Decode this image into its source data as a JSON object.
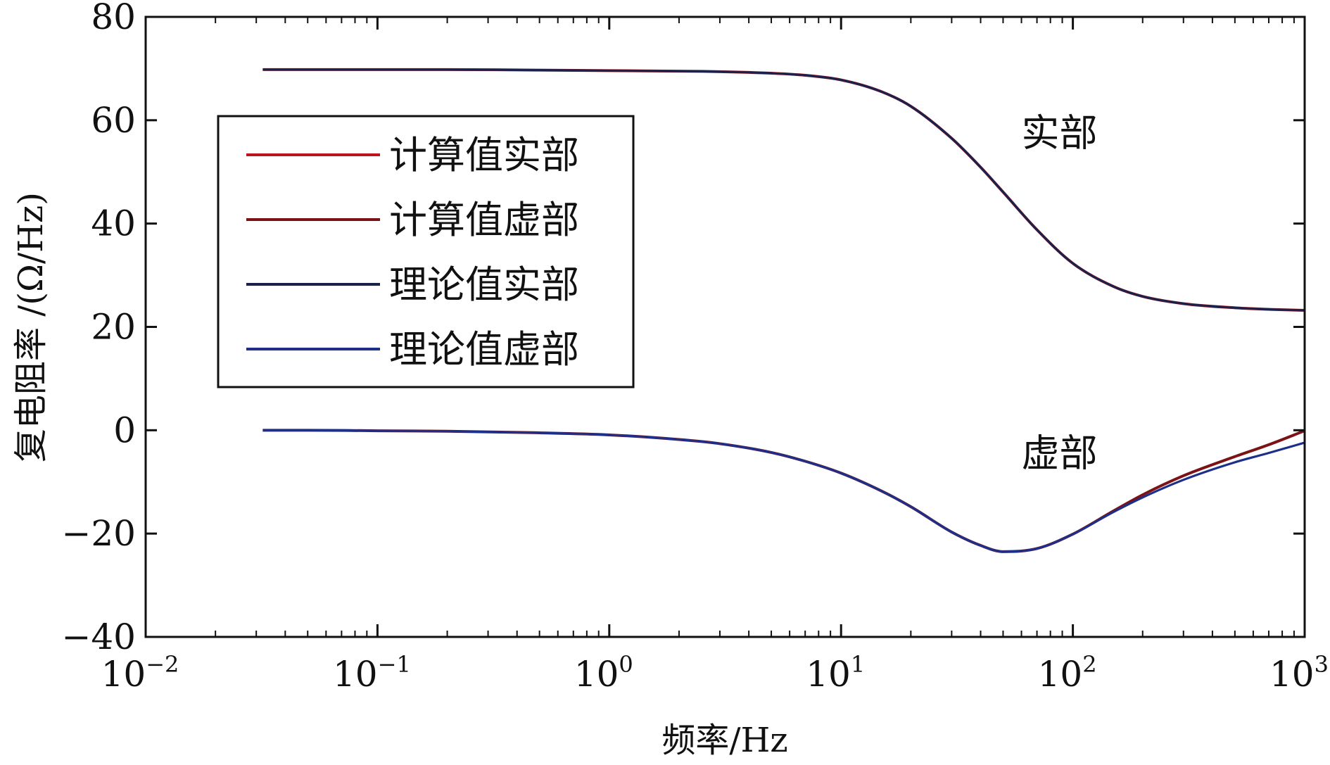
{
  "chart_data": {
    "type": "line",
    "title": "",
    "xlabel": "频率/Hz",
    "ylabel": "复电阻率 /(Ω/Hz)",
    "xscale": "log",
    "xlim": [
      0.01,
      1000
    ],
    "ylim": [
      -40,
      80
    ],
    "grid": false,
    "legend_position": "upper-left",
    "x_ticks": [
      {
        "base": "10",
        "exp": "−2"
      },
      {
        "base": "10",
        "exp": "−1"
      },
      {
        "base": "10",
        "exp": "0"
      },
      {
        "base": "10",
        "exp": "1"
      },
      {
        "base": "10",
        "exp": "2"
      },
      {
        "base": "10",
        "exp": "3"
      }
    ],
    "y_ticks": [
      "−40",
      "−20",
      "0",
      "20",
      "40",
      "60",
      "80"
    ],
    "y_tick_values": [
      -40,
      -20,
      0,
      20,
      40,
      60,
      80
    ],
    "x": [
      0.032,
      0.05,
      0.1,
      0.2,
      0.5,
      1,
      2,
      3,
      5,
      7,
      10,
      15,
      20,
      30,
      40,
      50,
      70,
      100,
      150,
      200,
      300,
      500,
      700,
      1000
    ],
    "series": [
      {
        "name": "计算值实部",
        "color": "#c0141c",
        "values": [
          69.8,
          69.8,
          69.8,
          69.8,
          69.7,
          69.6,
          69.5,
          69.4,
          69.1,
          68.7,
          67.8,
          65.5,
          62.7,
          56.5,
          50.9,
          46.1,
          38.8,
          32.3,
          27.8,
          25.9,
          24.5,
          23.7,
          23.4,
          23.2
        ]
      },
      {
        "name": "计算值虚部",
        "color": "#7a1216",
        "values": [
          0,
          0,
          -0.1,
          -0.2,
          -0.5,
          -0.9,
          -1.8,
          -2.6,
          -4.3,
          -6.0,
          -8.3,
          -11.8,
          -14.8,
          -19.7,
          -22.3,
          -23.5,
          -22.9,
          -20.1,
          -15.6,
          -12.5,
          -8.8,
          -5.1,
          -2.8,
          -0.1
        ]
      },
      {
        "name": "理论值实部",
        "color": "#18224a",
        "values": [
          69.8,
          69.8,
          69.8,
          69.8,
          69.7,
          69.6,
          69.5,
          69.4,
          69.1,
          68.7,
          67.8,
          65.5,
          62.7,
          56.5,
          50.9,
          46.1,
          38.8,
          32.3,
          27.8,
          25.9,
          24.5,
          23.7,
          23.4,
          23.2
        ]
      },
      {
        "name": "理论值虚部",
        "color": "#1c2f8a",
        "values": [
          0,
          0,
          -0.1,
          -0.2,
          -0.5,
          -0.9,
          -1.8,
          -2.6,
          -4.3,
          -6.0,
          -8.3,
          -11.8,
          -14.8,
          -19.7,
          -22.3,
          -23.5,
          -22.9,
          -20.1,
          -15.8,
          -13.0,
          -9.6,
          -6.2,
          -4.4,
          -2.4
        ]
      }
    ],
    "annotations": [
      {
        "text": "实部",
        "x": 60,
        "y": 55
      },
      {
        "text": "虚部",
        "x": 60,
        "y": -7
      }
    ]
  }
}
